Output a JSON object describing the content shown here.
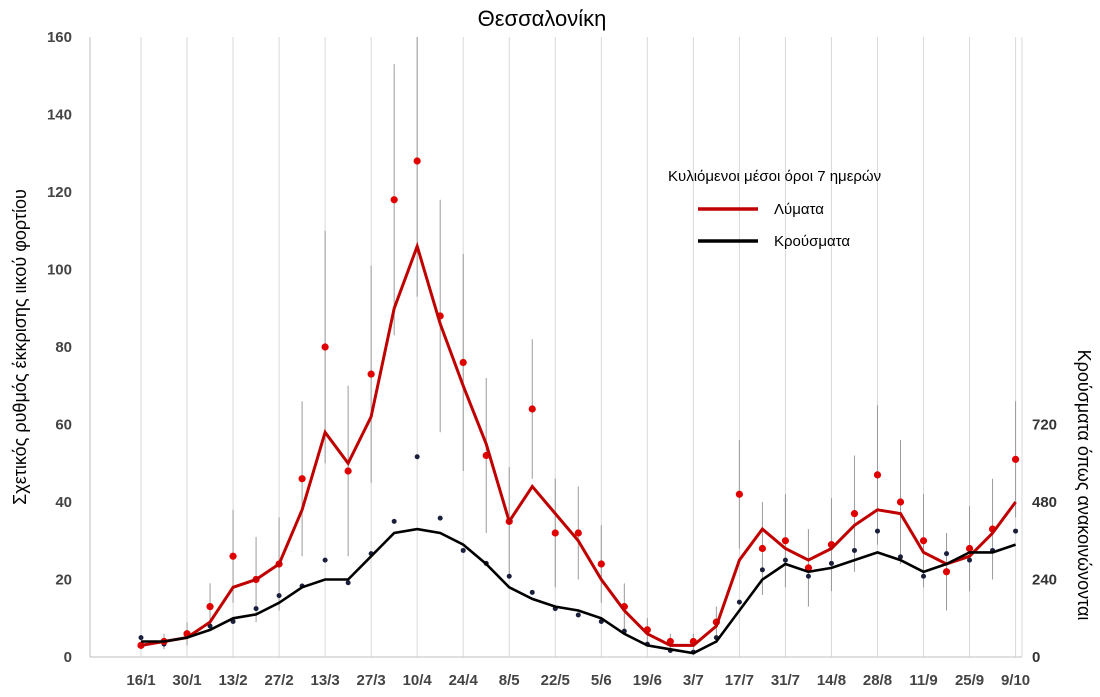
{
  "chart_data": {
    "type": "line",
    "title": "Θεσσαλονίκη",
    "xlabel": "",
    "ylabel_left": "Σχετικός ρυθμός έκκρισης ιικού φορτίου",
    "ylabel_right": "Κρούσματα όπως ανακοινώνονται",
    "x_ticks": [
      "16/1",
      "30/1",
      "13/2",
      "27/2",
      "13/3",
      "27/3",
      "10/4",
      "24/4",
      "8/5",
      "22/5",
      "5/6",
      "19/6",
      "3/7",
      "17/7",
      "31/7",
      "14/8",
      "28/8",
      "11/9",
      "25/9",
      "9/10"
    ],
    "ylim_left": [
      0,
      160
    ],
    "y_ticks_left": [
      "0",
      "20",
      "40",
      "60",
      "80",
      "100",
      "120",
      "140",
      "160"
    ],
    "ylim_right": [
      0,
      1920
    ],
    "y_ticks_right": [
      "0",
      "240",
      "480",
      "720"
    ],
    "grid": "vertical",
    "legend": {
      "title": "Κυλιόμενοι μέσοι όροι 7 ημερών",
      "placement": "top-right",
      "entries": [
        {
          "label": "Λύματα",
          "color": "#c00000"
        },
        {
          "label": "Κρούσματα",
          "color": "#000000"
        }
      ]
    },
    "series": [
      {
        "name": "Λύματα",
        "kind": "7-day moving average (left axis)",
        "color": "#c00000",
        "x": [
          "16/1",
          "23/1",
          "30/1",
          "6/2",
          "13/2",
          "20/2",
          "27/2",
          "6/3",
          "13/3",
          "20/3",
          "27/3",
          "3/4",
          "10/4",
          "17/4",
          "24/4",
          "1/5",
          "8/5",
          "15/5",
          "22/5",
          "29/5",
          "5/6",
          "12/6",
          "19/6",
          "26/6",
          "3/7",
          "10/7",
          "17/7",
          "24/7",
          "31/7",
          "7/8",
          "14/8",
          "21/8",
          "28/8",
          "4/9",
          "11/9",
          "18/9",
          "25/9",
          "2/10",
          "9/10"
        ],
        "y": [
          3,
          4,
          5,
          9,
          18,
          20,
          24,
          38,
          58,
          50,
          62,
          90,
          106,
          86,
          70,
          55,
          35,
          44,
          37,
          30,
          20,
          12,
          6,
          3,
          3,
          8,
          25,
          33,
          28,
          25,
          28,
          34,
          38,
          37,
          27,
          24,
          26,
          32,
          40
        ]
      },
      {
        "name": "Λύματα (ημερήσιες τιμές)",
        "kind": "daily points with error bars (left axis)",
        "color": "#c00000",
        "x": [
          "16/1",
          "23/1",
          "30/1",
          "6/2",
          "13/2",
          "20/2",
          "27/2",
          "6/3",
          "13/3",
          "20/3",
          "27/3",
          "3/4",
          "10/4",
          "17/4",
          "24/4",
          "1/5",
          "8/5",
          "15/5",
          "22/5",
          "29/5",
          "5/6",
          "12/6",
          "19/6",
          "26/6",
          "3/7",
          "10/7",
          "17/7",
          "24/7",
          "31/7",
          "7/8",
          "14/8",
          "21/8",
          "28/8",
          "4/9",
          "11/9",
          "18/9",
          "25/9",
          "2/10",
          "9/10"
        ],
        "y": [
          3,
          4,
          6,
          13,
          26,
          20,
          24,
          46,
          80,
          48,
          73,
          118,
          128,
          88,
          76,
          52,
          35,
          64,
          32,
          32,
          24,
          13,
          7,
          4,
          4,
          9,
          42,
          28,
          30,
          23,
          29,
          37,
          47,
          40,
          30,
          22,
          28,
          33,
          51
        ],
        "error": [
          1,
          2,
          3,
          6,
          12,
          11,
          12,
          20,
          30,
          22,
          28,
          35,
          35,
          30,
          28,
          20,
          14,
          18,
          14,
          12,
          10,
          6,
          3,
          2,
          2,
          4,
          14,
          12,
          12,
          10,
          12,
          15,
          18,
          16,
          12,
          10,
          11,
          13,
          15
        ]
      },
      {
        "name": "Κρούσματα",
        "kind": "7-day moving average (right axis)",
        "color": "#000000",
        "x": [
          "16/1",
          "23/1",
          "30/1",
          "6/2",
          "13/2",
          "20/2",
          "27/2",
          "6/3",
          "13/3",
          "20/3",
          "27/3",
          "3/4",
          "10/4",
          "17/4",
          "24/4",
          "1/5",
          "8/5",
          "15/5",
          "22/5",
          "29/5",
          "5/6",
          "12/6",
          "19/6",
          "26/6",
          "3/7",
          "10/7",
          "17/7",
          "24/7",
          "31/7",
          "7/8",
          "14/8",
          "21/8",
          "28/8",
          "4/9",
          "11/9",
          "18/9",
          "25/9",
          "2/10",
          "9/10"
        ],
        "y": [
          48,
          48,
          60,
          84,
          120,
          132,
          168,
          216,
          240,
          240,
          312,
          384,
          396,
          384,
          348,
          288,
          216,
          180,
          156,
          144,
          120,
          72,
          36,
          24,
          12,
          48,
          144,
          240,
          288,
          264,
          276,
          300,
          324,
          300,
          264,
          288,
          324,
          324,
          348
        ]
      },
      {
        "name": "Κρούσματα (ημερήσιες τιμές)",
        "kind": "daily points (right axis)",
        "color": "#1a1f3c",
        "x": [
          "16/1",
          "23/1",
          "30/1",
          "6/2",
          "13/2",
          "20/2",
          "27/2",
          "6/3",
          "13/3",
          "20/3",
          "27/3",
          "3/4",
          "10/4",
          "17/4",
          "24/4",
          "1/5",
          "8/5",
          "15/5",
          "22/5",
          "29/5",
          "5/6",
          "12/6",
          "19/6",
          "26/6",
          "3/7",
          "10/7",
          "17/7",
          "24/7",
          "31/7",
          "7/8",
          "14/8",
          "21/8",
          "28/8",
          "4/9",
          "11/9",
          "18/9",
          "25/9",
          "2/10",
          "9/10"
        ],
        "y": [
          60,
          40,
          72,
          96,
          110,
          150,
          190,
          220,
          300,
          230,
          320,
          420,
          620,
          430,
          330,
          290,
          250,
          200,
          150,
          130,
          110,
          80,
          40,
          20,
          15,
          60,
          170,
          270,
          300,
          250,
          290,
          330,
          390,
          310,
          250,
          320,
          300,
          330,
          390
        ]
      }
    ]
  }
}
